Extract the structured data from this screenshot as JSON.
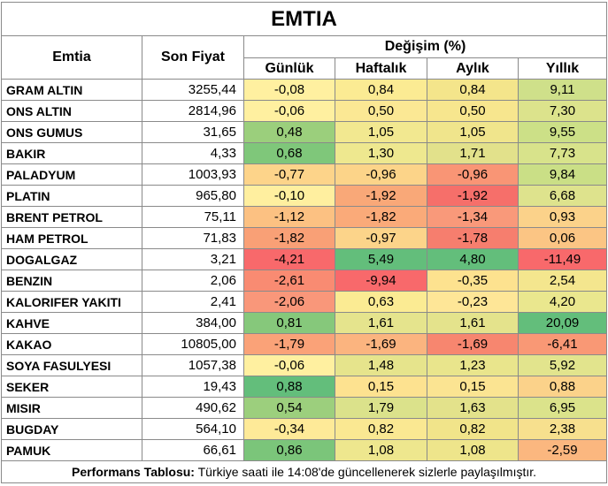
{
  "title": "EMTIA",
  "headers": {
    "emtia": "Emtia",
    "son_fiyat": "Son Fiyat",
    "degisim": "Değişim (%)",
    "gunluk": "Günlük",
    "haftalik": "Haftalık",
    "aylik": "Aylık",
    "yillik": "Yıllık"
  },
  "rows": [
    {
      "name": "GRAM ALTIN",
      "price": "3255,44",
      "d": "-0,08",
      "w": "0,84",
      "m": "0,84",
      "y": "9,11",
      "cd": "#fff0a0",
      "cw": "#fbeb93",
      "cm": "#f4e58b",
      "cy": "#cfe08a"
    },
    {
      "name": "ONS ALTIN",
      "price": "2814,96",
      "d": "-0,06",
      "w": "0,50",
      "m": "0,50",
      "y": "7,30",
      "cd": "#fff0a0",
      "cw": "#fbe894",
      "cm": "#f7e68e",
      "cy": "#dce38c"
    },
    {
      "name": "ONS GUMUS",
      "price": "31,65",
      "d": "0,48",
      "w": "1,05",
      "m": "1,05",
      "y": "9,55",
      "cd": "#9bcf7c",
      "cw": "#f2e890",
      "cm": "#f0e58c",
      "cy": "#cce087"
    },
    {
      "name": "BAKIR",
      "price": "4,33",
      "d": "0,68",
      "w": "1,30",
      "m": "1,71",
      "y": "7,73",
      "cd": "#7fc77a",
      "cw": "#eee88f",
      "cm": "#e2e18b",
      "cy": "#d8e38b"
    },
    {
      "name": "PALADYUM",
      "price": "1003,93",
      "d": "-0,77",
      "w": "-0,96",
      "m": "-0,96",
      "y": "9,84",
      "cd": "#fdd48a",
      "cw": "#fcd489",
      "cm": "#f99575",
      "cy": "#cadf86"
    },
    {
      "name": "PLATIN",
      "price": "965,80",
      "d": "-0,10",
      "w": "-1,92",
      "m": "-1,92",
      "y": "6,68",
      "cd": "#ffef9f",
      "cw": "#f9a878",
      "cm": "#f66f6a",
      "cy": "#dee38d"
    },
    {
      "name": "BRENT PETROL",
      "price": "75,11",
      "d": "-1,12",
      "w": "-1,82",
      "m": "-1,34",
      "y": "0,93",
      "cd": "#fcc182",
      "cw": "#faaa79",
      "cm": "#f9997a",
      "cy": "#fbd28a"
    },
    {
      "name": "HAM PETROL",
      "price": "71,83",
      "d": "-1,82",
      "w": "-0,97",
      "m": "-1,78",
      "y": "0,06",
      "cd": "#f9a076",
      "cw": "#fcd48a",
      "cm": "#f67e6e",
      "cy": "#fbc584"
    },
    {
      "name": "DOGALGAZ",
      "price": "3,21",
      "d": "-4,21",
      "w": "5,49",
      "m": "4,80",
      "y": "-11,49",
      "cd": "#f8696b",
      "cw": "#63be7b",
      "cm": "#63be7b",
      "cy": "#f8696b"
    },
    {
      "name": "BENZIN",
      "price": "2,06",
      "d": "-2,61",
      "w": "-9,94",
      "m": "-0,35",
      "y": "2,54",
      "cd": "#f98b72",
      "cw": "#f8696b",
      "cm": "#fde28f",
      "cy": "#f4e68e"
    },
    {
      "name": "KALORIFER YAKITI",
      "price": "2,41",
      "d": "-2,06",
      "w": "0,63",
      "m": "-0,23",
      "y": "4,20",
      "cd": "#f9977a",
      "cw": "#fbeb93",
      "cm": "#fee697",
      "cy": "#eae78e"
    },
    {
      "name": "KAHVE",
      "price": "384,00",
      "d": "0,81",
      "w": "1,61",
      "m": "1,61",
      "y": "20,09",
      "cd": "#86c87b",
      "cw": "#e5e48d",
      "cm": "#e4e38c",
      "cy": "#63be7b"
    },
    {
      "name": "KAKAO",
      "price": "10805,00",
      "d": "-1,79",
      "w": "-1,69",
      "m": "-1,69",
      "y": "-6,41",
      "cd": "#faa278",
      "cw": "#fbb47f",
      "cm": "#f7866f",
      "cy": "#f99875"
    },
    {
      "name": "SOYA FASULYESI",
      "price": "1057,38",
      "d": "-0,06",
      "w": "1,48",
      "m": "1,23",
      "y": "5,92",
      "cd": "#fff0a0",
      "cw": "#e6e48c",
      "cm": "#e9e58c",
      "cy": "#e2e48d"
    },
    {
      "name": "SEKER",
      "price": "19,43",
      "d": "0,88",
      "w": "0,15",
      "m": "0,15",
      "y": "0,88",
      "cd": "#63be7b",
      "cw": "#fde290",
      "cm": "#fbe492",
      "cy": "#fbd28a"
    },
    {
      "name": "MISIR",
      "price": "490,62",
      "d": "0,54",
      "w": "1,79",
      "m": "1,63",
      "y": "6,95",
      "cd": "#9ccf7d",
      "cw": "#dbe28b",
      "cm": "#e3e28b",
      "cy": "#dbe38b"
    },
    {
      "name": "BUGDAY",
      "price": "564,10",
      "d": "-0,34",
      "w": "0,82",
      "m": "0,82",
      "y": "2,38",
      "cd": "#feea98",
      "cw": "#fae892",
      "cm": "#f1e48a",
      "cy": "#f7e08e"
    },
    {
      "name": "PAMUK",
      "price": "66,61",
      "d": "0,86",
      "w": "1,08",
      "m": "1,08",
      "y": "-2,59",
      "cd": "#7bc57a",
      "cw": "#eee78e",
      "cm": "#eee58b",
      "cy": "#fbb77f"
    }
  ],
  "footer": {
    "label": "Performans Tablosu:",
    "text": " Türkiye saati ile 14:08'de güncellenerek sizlerle paylaşılmıştır."
  }
}
